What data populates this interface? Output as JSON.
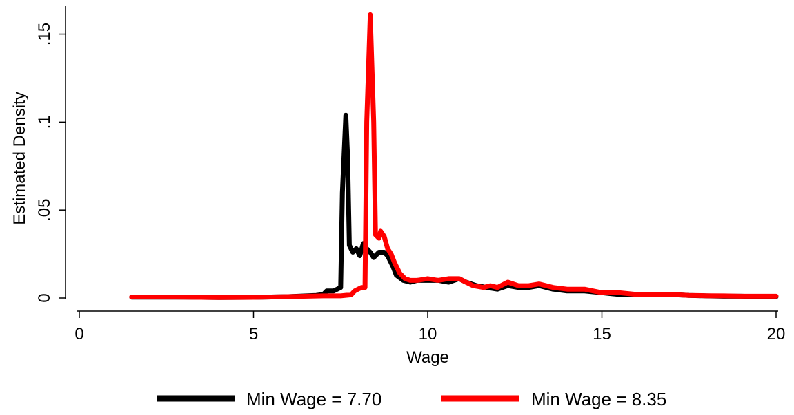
{
  "chart_data": {
    "type": "line",
    "xlabel": "Wage",
    "ylabel": "Estimated Density",
    "xlim": [
      0,
      20
    ],
    "ylim": [
      0,
      0.16
    ],
    "xticks": [
      {
        "value": 0,
        "label": "0"
      },
      {
        "value": 5,
        "label": "5"
      },
      {
        "value": 10,
        "label": "10"
      },
      {
        "value": 15,
        "label": "15"
      },
      {
        "value": 20,
        "label": "20"
      }
    ],
    "yticks": [
      {
        "value": 0,
        "label": "0"
      },
      {
        "value": 0.05,
        "label": ".05"
      },
      {
        "value": 0.1,
        "label": ".1"
      },
      {
        "value": 0.15,
        "label": ".15"
      }
    ],
    "grid": false,
    "legend_position": "bottom",
    "series": [
      {
        "name": "Min Wage = 7.70",
        "color": "#000000",
        "points": [
          [
            1.5,
            0.0005
          ],
          [
            3.0,
            0.0005
          ],
          [
            4.0,
            0.0003
          ],
          [
            5.0,
            0.0004
          ],
          [
            6.0,
            0.0008
          ],
          [
            6.8,
            0.0015
          ],
          [
            7.0,
            0.002
          ],
          [
            7.1,
            0.004
          ],
          [
            7.3,
            0.004
          ],
          [
            7.4,
            0.005
          ],
          [
            7.5,
            0.006
          ],
          [
            7.55,
            0.06
          ],
          [
            7.65,
            0.104
          ],
          [
            7.7,
            0.08
          ],
          [
            7.75,
            0.03
          ],
          [
            7.85,
            0.026
          ],
          [
            7.95,
            0.028
          ],
          [
            8.05,
            0.024
          ],
          [
            8.15,
            0.031
          ],
          [
            8.25,
            0.028
          ],
          [
            8.35,
            0.026
          ],
          [
            8.45,
            0.023
          ],
          [
            8.6,
            0.026
          ],
          [
            8.75,
            0.026
          ],
          [
            8.85,
            0.024
          ],
          [
            9.0,
            0.018
          ],
          [
            9.1,
            0.013
          ],
          [
            9.3,
            0.01
          ],
          [
            9.5,
            0.009
          ],
          [
            9.7,
            0.01
          ],
          [
            10.0,
            0.01
          ],
          [
            10.3,
            0.01
          ],
          [
            10.6,
            0.009
          ],
          [
            10.9,
            0.011
          ],
          [
            11.1,
            0.009
          ],
          [
            11.4,
            0.007
          ],
          [
            11.7,
            0.006
          ],
          [
            12.0,
            0.005
          ],
          [
            12.3,
            0.007
          ],
          [
            12.6,
            0.006
          ],
          [
            12.9,
            0.006
          ],
          [
            13.2,
            0.007
          ],
          [
            13.6,
            0.005
          ],
          [
            14.0,
            0.004
          ],
          [
            14.5,
            0.004
          ],
          [
            15.0,
            0.003
          ],
          [
            15.5,
            0.002
          ],
          [
            16.0,
            0.002
          ],
          [
            16.5,
            0.002
          ],
          [
            17.0,
            0.002
          ],
          [
            17.5,
            0.0015
          ],
          [
            18.0,
            0.0012
          ],
          [
            18.5,
            0.001
          ],
          [
            19.0,
            0.001
          ],
          [
            19.5,
            0.0008
          ],
          [
            20.0,
            0.0008
          ]
        ]
      },
      {
        "name": "Min Wage = 8.35",
        "color": "#ff0000",
        "points": [
          [
            1.5,
            0.0006
          ],
          [
            3.0,
            0.0005
          ],
          [
            4.0,
            0.0003
          ],
          [
            5.0,
            0.0004
          ],
          [
            6.0,
            0.0008
          ],
          [
            7.0,
            0.0012
          ],
          [
            7.5,
            0.0012
          ],
          [
            7.8,
            0.0018
          ],
          [
            7.9,
            0.004
          ],
          [
            8.0,
            0.005
          ],
          [
            8.1,
            0.006
          ],
          [
            8.2,
            0.006
          ],
          [
            8.25,
            0.1
          ],
          [
            8.35,
            0.161
          ],
          [
            8.45,
            0.1
          ],
          [
            8.5,
            0.036
          ],
          [
            8.6,
            0.034
          ],
          [
            8.65,
            0.038
          ],
          [
            8.75,
            0.035
          ],
          [
            8.85,
            0.028
          ],
          [
            8.95,
            0.025
          ],
          [
            9.05,
            0.02
          ],
          [
            9.2,
            0.014
          ],
          [
            9.35,
            0.011
          ],
          [
            9.5,
            0.01
          ],
          [
            9.7,
            0.01
          ],
          [
            10.0,
            0.011
          ],
          [
            10.3,
            0.01
          ],
          [
            10.6,
            0.011
          ],
          [
            10.9,
            0.011
          ],
          [
            11.1,
            0.009
          ],
          [
            11.3,
            0.007
          ],
          [
            11.6,
            0.006
          ],
          [
            11.8,
            0.007
          ],
          [
            12.0,
            0.006
          ],
          [
            12.3,
            0.009
          ],
          [
            12.6,
            0.007
          ],
          [
            12.9,
            0.007
          ],
          [
            13.2,
            0.008
          ],
          [
            13.6,
            0.006
          ],
          [
            14.0,
            0.005
          ],
          [
            14.5,
            0.005
          ],
          [
            15.0,
            0.003
          ],
          [
            15.5,
            0.003
          ],
          [
            16.0,
            0.002
          ],
          [
            16.5,
            0.002
          ],
          [
            17.0,
            0.002
          ],
          [
            17.5,
            0.0015
          ],
          [
            18.0,
            0.0013
          ],
          [
            18.5,
            0.0012
          ],
          [
            19.0,
            0.001
          ],
          [
            19.5,
            0.001
          ],
          [
            20.0,
            0.001
          ]
        ]
      }
    ]
  }
}
